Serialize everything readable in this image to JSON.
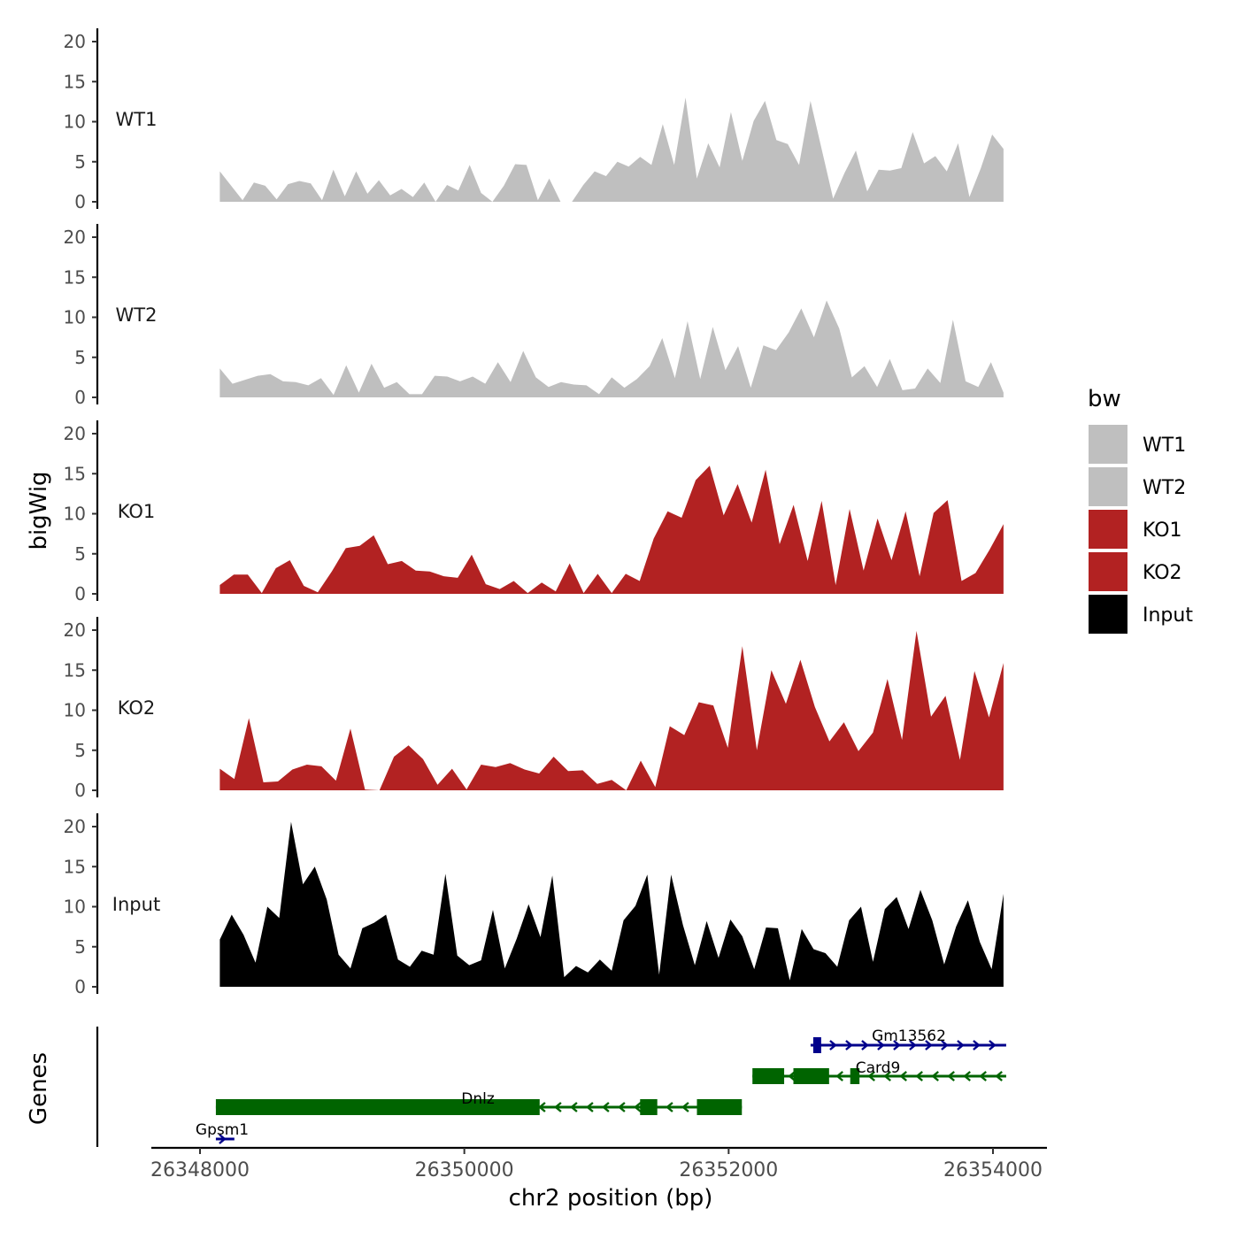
{
  "chart_data": {
    "type": "area",
    "title": "",
    "ylabel": "bigWig",
    "xlabel": "chr2 position (bp)",
    "xlim": [
      26347750,
      26354400
    ],
    "ylim": [
      0,
      21
    ],
    "y_ticks": [
      0,
      5,
      10,
      15,
      20
    ],
    "x_ticks": [
      26348000,
      26350000,
      26352000,
      26354000
    ],
    "x_tick_labels": [
      "26348000",
      "26350000",
      "26352000",
      "26354000"
    ],
    "x_start": 26348150,
    "x_end": 26354080,
    "legend": {
      "title": "bw",
      "placement": "right",
      "entries": [
        {
          "label": "WT1",
          "color": "#bfbfbf"
        },
        {
          "label": "WT2",
          "color": "#bfbfbf"
        },
        {
          "label": "KO1",
          "color": "#b22222"
        },
        {
          "label": "KO2",
          "color": "#b22222"
        },
        {
          "label": "Input",
          "color": "#000000"
        }
      ]
    },
    "series": [
      {
        "name": "WT1",
        "color": "#bfbfbf",
        "values": [
          3.8,
          2,
          0.2,
          2.4,
          2,
          0.3,
          2.2,
          2.6,
          2.3,
          0.2,
          4,
          0.7,
          3.8,
          1,
          2.7,
          0.8,
          1.6,
          0.6,
          2.4,
          0,
          2.1,
          1.4,
          4.6,
          1.1,
          0,
          2,
          4.7,
          4.6,
          0.2,
          2.9,
          0,
          0,
          2.1,
          3.8,
          3.2,
          5,
          4.4,
          5.6,
          4.6,
          9.7,
          4.6,
          13,
          2.9,
          7.3,
          4.3,
          11.2,
          5.1,
          10.1,
          12.6,
          7.7,
          7.2,
          4.6,
          12.6,
          6.5,
          0.4,
          3.6,
          6.4,
          1.3,
          4,
          3.9,
          4.2,
          8.7,
          4.8,
          5.7,
          3.8,
          7.3,
          0.6,
          4.2,
          8.4,
          6.6
        ]
      },
      {
        "name": "WT2",
        "color": "#bfbfbf",
        "values": [
          3.6,
          1.7,
          2.2,
          2.7,
          2.9,
          2,
          1.9,
          1.5,
          2.4,
          0.3,
          4,
          0.6,
          4.2,
          1.2,
          1.9,
          0.4,
          0.4,
          2.7,
          2.6,
          2,
          2.6,
          1.7,
          4.4,
          1.9,
          5.8,
          2.5,
          1.3,
          1.9,
          1.6,
          1.5,
          0.4,
          2.5,
          1.2,
          2.3,
          3.9,
          7.4,
          2.4,
          9.5,
          2.3,
          8.8,
          3.4,
          6.4,
          1.2,
          6.5,
          5.9,
          8.1,
          11.1,
          7.5,
          12.1,
          8.6,
          2.5,
          3.9,
          1.3,
          4.8,
          0.9,
          1.1,
          3.6,
          1.8,
          9.7,
          2,
          1.3,
          4.4,
          0.6
        ]
      },
      {
        "name": "KO1",
        "color": "#b22222",
        "values": [
          1.1,
          2.4,
          2.4,
          0.1,
          3.2,
          4.2,
          1,
          0.2,
          2.8,
          5.7,
          6,
          7.3,
          3.7,
          4.1,
          2.9,
          2.8,
          2.2,
          2,
          4.9,
          1.2,
          0.6,
          1.6,
          0.1,
          1.4,
          0.3,
          3.8,
          0.1,
          2.5,
          0.1,
          2.5,
          1.6,
          6.9,
          10.3,
          9.5,
          14.2,
          16,
          9.8,
          13.7,
          8.9,
          15.5,
          6.2,
          11.1,
          4.1,
          11.6,
          1.1,
          10.6,
          2.9,
          9.4,
          4.2,
          10.3,
          2.2,
          10.1,
          11.7,
          1.6,
          2.6,
          5.5,
          8.7
        ]
      },
      {
        "name": "KO2",
        "color": "#b22222",
        "values": [
          2.7,
          1.4,
          9,
          1,
          1.1,
          2.6,
          3.2,
          3,
          1.2,
          7.7,
          0.1,
          0,
          4.2,
          5.6,
          3.9,
          0.7,
          2.7,
          0.1,
          3.2,
          2.9,
          3.4,
          2.6,
          2.1,
          4.2,
          2.4,
          2.5,
          0.8,
          1.3,
          0,
          3.7,
          0.4,
          8,
          6.9,
          11,
          10.6,
          5.3,
          18,
          5,
          15,
          10.8,
          16.3,
          10.4,
          6.1,
          8.5,
          4.9,
          7.2,
          13.9,
          6.3,
          19.9,
          9.2,
          11.8,
          3.8,
          14.9,
          9.1,
          15.9
        ]
      },
      {
        "name": "Input",
        "color": "#000000",
        "values": [
          5.9,
          9,
          6.5,
          3,
          10,
          8.6,
          20.6,
          12.8,
          15,
          10.9,
          4,
          2.3,
          7.3,
          8,
          9,
          3.4,
          2.5,
          4.5,
          4,
          14.1,
          3.9,
          2.7,
          3.3,
          9.6,
          2.3,
          6,
          10.3,
          6.2,
          13.9,
          1.2,
          2.6,
          1.8,
          3.4,
          2,
          8.3,
          10.1,
          14,
          1.5,
          14,
          7.7,
          2.7,
          8.2,
          3.6,
          8.4,
          6.3,
          2.2,
          7.4,
          7.3,
          0.8,
          7.2,
          4.7,
          4.2,
          2.5,
          8.3,
          10,
          3.1,
          9.7,
          11.2,
          7.2,
          12.1,
          8.3,
          2.8,
          7.5,
          10.8,
          5.6,
          2.2,
          11.6
        ]
      }
    ],
    "genes_track": {
      "ylabel": "Genes",
      "genes": [
        {
          "name": "Gm13562",
          "strand": "+",
          "color": "#00008b",
          "start": 26352620,
          "end": 26354100,
          "exons": [
            [
              26352640,
              26352700
            ]
          ]
        },
        {
          "name": "Card9",
          "strand": "-",
          "color": "#006400",
          "start": 26352180,
          "end": 26354100,
          "exons": [
            [
              26352180,
              26352420
            ],
            [
              26352490,
              26352760
            ],
            [
              26352920,
              26352990
            ]
          ]
        },
        {
          "name": "Dnlz",
          "strand": "-",
          "color": "#006400",
          "start": 26348120,
          "end": 26352100,
          "exons": [
            [
              26348120,
              26350570
            ],
            [
              26351330,
              26351460
            ],
            [
              26351760,
              26352100
            ]
          ]
        },
        {
          "name": "Gpsm1",
          "strand": "+",
          "color": "#00008b",
          "start": 26348120,
          "end": 26348260,
          "exons": []
        }
      ]
    }
  }
}
